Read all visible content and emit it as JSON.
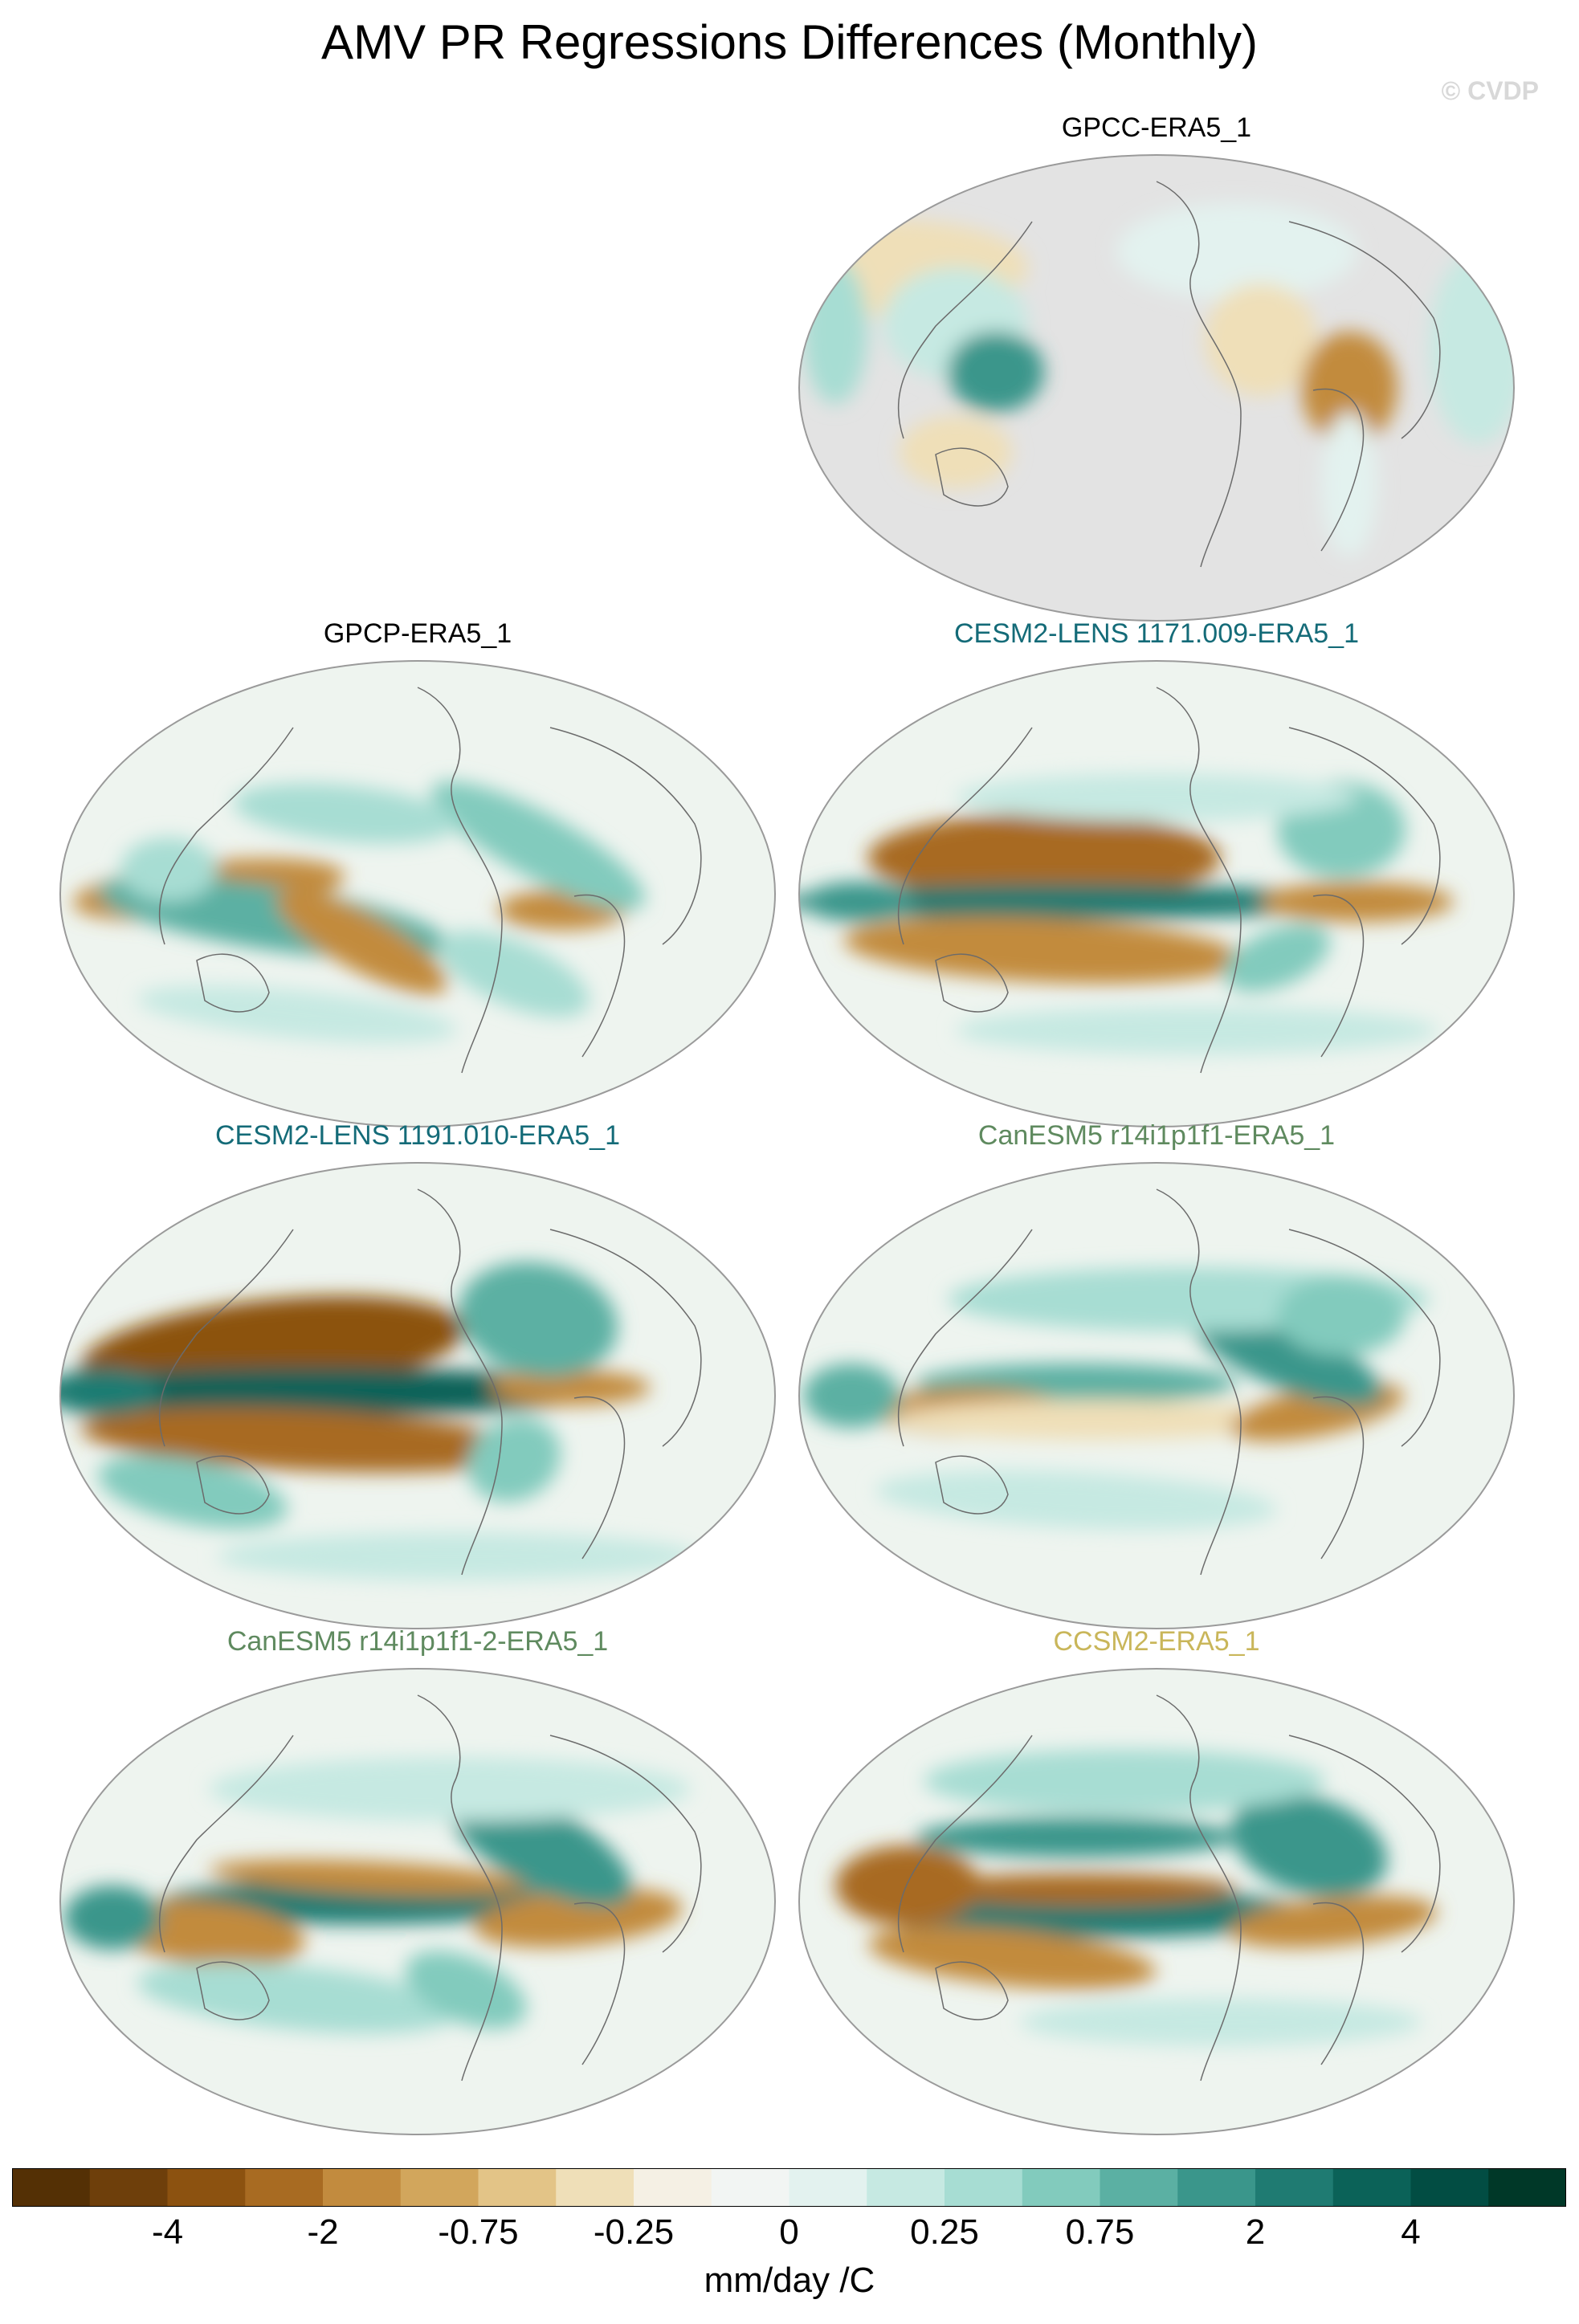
{
  "title": "AMV PR Regressions Differences (Monthly)",
  "watermark": "© CVDP",
  "panels": [
    {
      "title": "GPCC-ERA5_1",
      "title_color": "#000000",
      "land_only": true
    },
    {
      "title": "GPCP-ERA5_1",
      "title_color": "#000000",
      "land_only": false
    },
    {
      "title": "CESM2-LENS 1171.009-ERA5_1",
      "title_color": "#146b78",
      "land_only": false
    },
    {
      "title": "CESM2-LENS 1191.010-ERA5_1",
      "title_color": "#146b78",
      "land_only": false
    },
    {
      "title": "CanESM5 r14i1p1f1-ERA5_1",
      "title_color": "#5f8a5f",
      "land_only": false
    },
    {
      "title": "CanESM5 r14i1p1f1-2-ERA5_1",
      "title_color": "#5f8a5f",
      "land_only": false
    },
    {
      "title": "CCSM2-ERA5_1",
      "title_color": "#c9b65a",
      "land_only": false
    }
  ],
  "colorbar": {
    "colors": [
      "#543005",
      "#6e3f0b",
      "#8c5210",
      "#a86b22",
      "#c28b3e",
      "#d2a65c",
      "#e3c487",
      "#efdfb8",
      "#f5f0e4",
      "#f2f5f3",
      "#e3f2ef",
      "#c6e9e2",
      "#a7ddd3",
      "#82cbbd",
      "#5bb0a3",
      "#3a968b",
      "#1f7b72",
      "#0b6258",
      "#024d43",
      "#003828"
    ],
    "labels": [
      {
        "text": "-4",
        "boundary": 2
      },
      {
        "text": "-2",
        "boundary": 4
      },
      {
        "text": "-0.75",
        "boundary": 6
      },
      {
        "text": "-0.25",
        "boundary": 8
      },
      {
        "text": "0",
        "boundary": 10
      },
      {
        "text": "0.25",
        "boundary": 12
      },
      {
        "text": "0.75",
        "boundary": 14
      },
      {
        "text": "2",
        "boundary": 16
      },
      {
        "text": "4",
        "boundary": 18
      }
    ],
    "units": "mm/day /C"
  }
}
